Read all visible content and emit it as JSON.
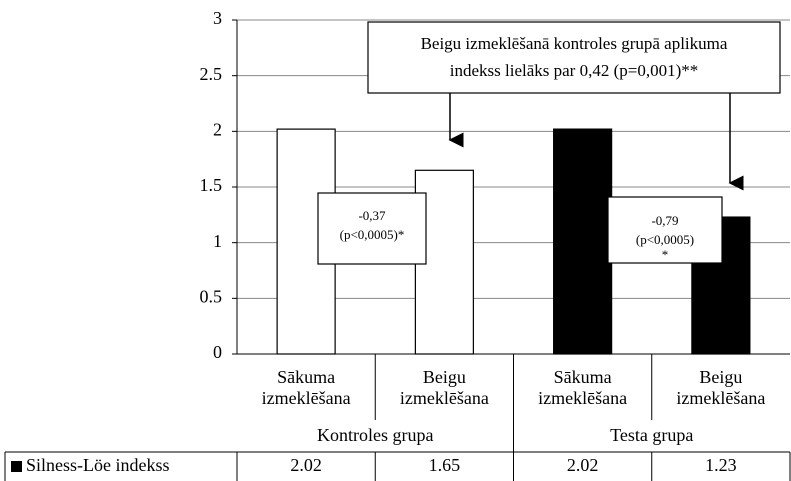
{
  "chart_data": {
    "type": "bar",
    "categories": [
      "Sākuma izmeklēšana",
      "Beigu izmeklēšana",
      "Sākuma izmeklēšana",
      "Beigu izmeklēšana"
    ],
    "groups": [
      "Kontroles grupa",
      "Testa grupa"
    ],
    "series": [
      {
        "name": "Silness-Löe indekss",
        "colors": [
          "#ffffff",
          "#ffffff",
          "#000000",
          "#000000"
        ],
        "values": [
          2.02,
          1.65,
          2.02,
          1.23
        ]
      }
    ],
    "ylim": [
      0,
      3
    ],
    "yticks": [
      0,
      0.5,
      1,
      1.5,
      2,
      2.5,
      3
    ],
    "grid": true,
    "data_table": true,
    "annotations": [
      {
        "lines": [
          "Beigu izmeklēšanā kontroles grupā aplikuma",
          "indekss lielāks par 0,42 (p=0,001)**"
        ]
      },
      {
        "lines": [
          "-0,37",
          "(p<0,0005)*"
        ]
      },
      {
        "lines": [
          "-0,79",
          "(p<0,0005)",
          "*"
        ]
      }
    ]
  }
}
